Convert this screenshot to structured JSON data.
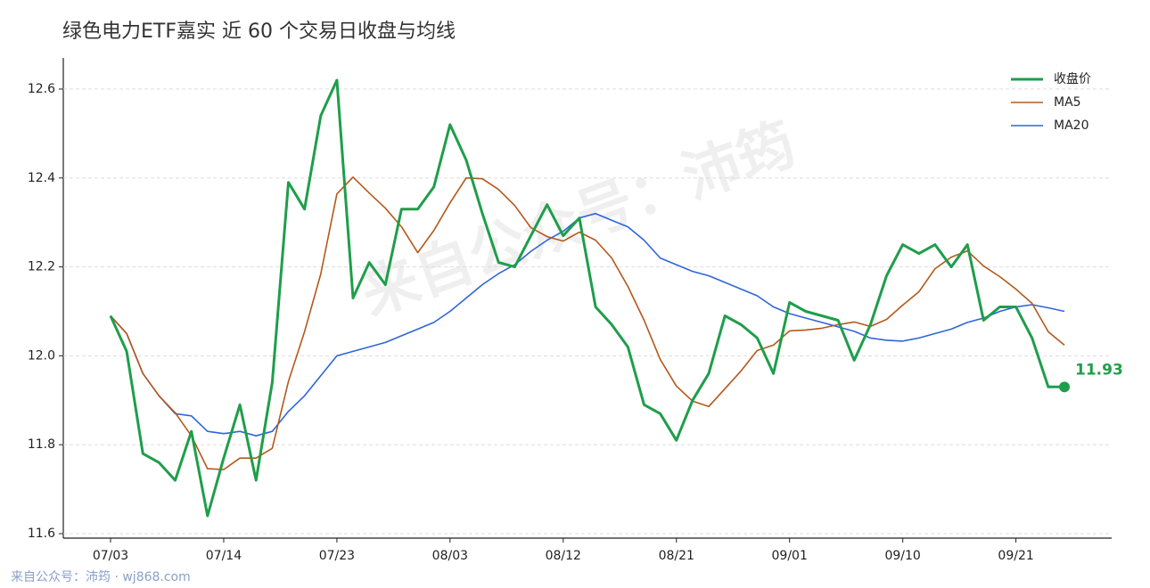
{
  "chart_data": {
    "type": "line",
    "title": "绿色电力ETF嘉实 近 60 个交易日收盘与均线",
    "watermark": "来自公众号：沛筠",
    "footer": "来自公众号：沛筠 · wj868.com",
    "categories": [
      "07/03",
      null,
      null,
      null,
      null,
      null,
      null,
      "07/14",
      null,
      null,
      null,
      null,
      null,
      null,
      "07/23",
      null,
      null,
      null,
      null,
      null,
      null,
      "08/03",
      null,
      null,
      null,
      null,
      null,
      null,
      "08/12",
      null,
      null,
      null,
      null,
      null,
      null,
      "08/21",
      null,
      null,
      null,
      null,
      null,
      null,
      "09/01",
      null,
      null,
      null,
      null,
      null,
      null,
      "09/10",
      null,
      null,
      null,
      null,
      null,
      null,
      "09/21",
      null,
      null,
      null
    ],
    "series": [
      {
        "name": "收盘价",
        "color": "#1e9e4a",
        "width": 3,
        "values": [
          12.09,
          12.01,
          11.78,
          11.76,
          11.72,
          11.83,
          11.64,
          11.77,
          11.89,
          11.72,
          11.94,
          12.39,
          12.33,
          12.54,
          12.62,
          12.13,
          12.21,
          12.16,
          12.33,
          12.33,
          12.38,
          12.52,
          12.44,
          12.32,
          12.21,
          12.2,
          12.27,
          12.34,
          12.27,
          12.31,
          12.11,
          12.07,
          12.02,
          11.89,
          11.87,
          11.81,
          11.9,
          11.96,
          12.09,
          12.07,
          12.04,
          11.96,
          12.12,
          12.1,
          12.09,
          12.08,
          11.99,
          12.07,
          12.18,
          12.25,
          12.23,
          12.25,
          12.2,
          12.25,
          12.08,
          12.11,
          12.11,
          12.04,
          11.93,
          11.93
        ]
      },
      {
        "name": "MA5",
        "color": "#b5581a",
        "width": 1.6,
        "values": [
          12.09,
          12.05,
          11.96,
          11.91,
          11.872,
          11.82,
          11.746,
          11.744,
          11.77,
          11.77,
          11.792,
          11.942,
          12.054,
          12.184,
          12.364,
          12.402,
          12.366,
          12.332,
          12.29,
          12.232,
          12.282,
          12.344,
          12.4,
          12.398,
          12.374,
          12.338,
          12.288,
          12.268,
          12.258,
          12.278,
          12.26,
          12.22,
          12.156,
          12.08,
          11.992,
          11.932,
          11.898,
          11.886,
          11.926,
          11.966,
          12.012,
          12.024,
          12.056,
          12.058,
          12.062,
          12.07,
          12.076,
          12.066,
          12.082,
          12.114,
          12.144,
          12.196,
          12.222,
          12.236,
          12.202,
          12.178,
          12.15,
          12.118,
          12.054,
          12.024
        ]
      },
      {
        "name": "MA20",
        "color": "#2f65d9",
        "width": 1.6,
        "values": [
          12.09,
          12.05,
          11.96,
          11.91,
          11.87,
          11.865,
          11.83,
          11.825,
          11.83,
          11.82,
          11.83,
          11.875,
          11.91,
          11.955,
          12.0,
          12.01,
          12.02,
          12.03,
          12.045,
          12.06,
          12.075,
          12.1,
          12.13,
          12.16,
          12.185,
          12.205,
          12.235,
          12.26,
          12.28,
          12.31,
          12.32,
          12.305,
          12.29,
          12.26,
          12.22,
          12.205,
          12.19,
          12.18,
          12.165,
          12.15,
          12.135,
          12.11,
          12.095,
          12.085,
          12.075,
          12.065,
          12.055,
          12.04,
          12.035,
          12.033,
          12.04,
          12.05,
          12.06,
          12.075,
          12.085,
          12.1,
          12.11,
          12.115,
          12.108,
          12.1
        ]
      }
    ],
    "ylim": [
      11.59,
      12.67
    ],
    "yticks": [
      11.6,
      11.8,
      {
        "value": 12,
        "label": "12.0"
      },
      12.2,
      12.4,
      12.6
    ],
    "grid": true,
    "legend": "upper right"
  }
}
